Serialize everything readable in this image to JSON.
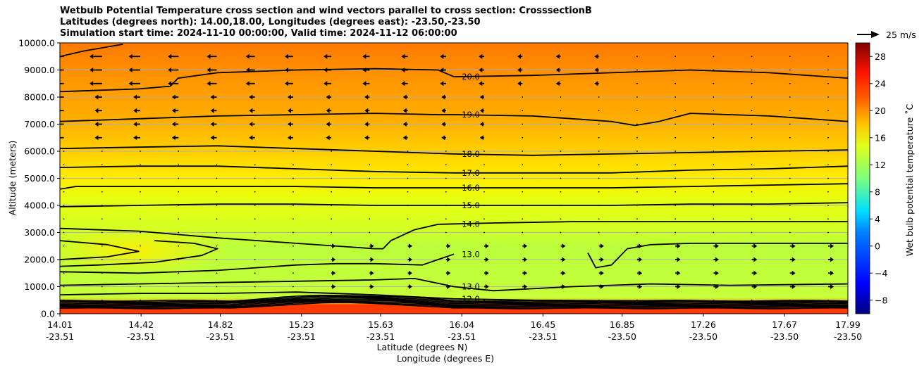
{
  "chart_data": {
    "type": "heatmap",
    "title_lines": [
      "Wetbulb Potential Temperature cross section and wind vectors parallel to cross section: CrosssectionB",
      "Latitudes (degrees north): 14.00,18.00, Longitudes (degrees east): -23.50,-23.50",
      "Simulation start time: 2024-11-10 00:00:00, Valid time: 2024-11-12 06:00:00"
    ],
    "ylabel": "Altitude (meters)",
    "xlabel_lat": "Latitude (degrees N)",
    "xlabel_lon": "Longitude (degrees E)",
    "colorbar_label": "Wet bulb potential temperature ˚C",
    "ylim": [
      0,
      10000
    ],
    "y_ticks": [
      "0.0",
      "1000.0",
      "2000.0",
      "3000.0",
      "4000.0",
      "5000.0",
      "6000.0",
      "7000.0",
      "8000.0",
      "9000.0",
      "10000.0"
    ],
    "x_ticks": [
      {
        "lat": "14.01",
        "lon": "-23.51"
      },
      {
        "lat": "14.42",
        "lon": "-23.51"
      },
      {
        "lat": "14.82",
        "lon": "-23.51"
      },
      {
        "lat": "15.23",
        "lon": "-23.51"
      },
      {
        "lat": "15.63",
        "lon": "-23.51"
      },
      {
        "lat": "16.04",
        "lon": "-23.51"
      },
      {
        "lat": "16.45",
        "lon": "-23.51"
      },
      {
        "lat": "16.85",
        "lon": "-23.50"
      },
      {
        "lat": "17.26",
        "lon": "-23.50"
      },
      {
        "lat": "17.67",
        "lon": "-23.50"
      },
      {
        "lat": "17.99",
        "lon": "-23.50"
      }
    ],
    "colorbar_range": [
      -10,
      30
    ],
    "colorbar_ticks": [
      "−8",
      "−4",
      "0",
      "4",
      "8",
      "12",
      "16",
      "20",
      "24",
      "28"
    ],
    "wind_key": "25 m/s",
    "grid": true,
    "contours": [
      {
        "level": "20.0",
        "points": [
          [
            0,
            9500
          ],
          [
            0.03,
            9700
          ],
          [
            0.08,
            9950
          ]
        ]
      },
      {
        "level": "20.0",
        "points": [
          [
            0,
            8200
          ],
          [
            0.1,
            8300
          ],
          [
            0.14,
            8400
          ],
          [
            0.15,
            8700
          ],
          [
            0.2,
            8900
          ],
          [
            0.3,
            9000
          ],
          [
            0.4,
            9050
          ],
          [
            0.48,
            9000
          ],
          [
            0.5,
            8750
          ],
          [
            0.6,
            8800
          ],
          [
            0.7,
            8900
          ],
          [
            0.8,
            9000
          ],
          [
            0.9,
            8900
          ],
          [
            1,
            8700
          ]
        ]
      },
      {
        "level": "19.0",
        "points": [
          [
            0,
            7100
          ],
          [
            0.1,
            7200
          ],
          [
            0.2,
            7300
          ],
          [
            0.3,
            7350
          ],
          [
            0.4,
            7400
          ],
          [
            0.48,
            7350
          ],
          [
            0.5,
            7350
          ],
          [
            0.6,
            7300
          ],
          [
            0.7,
            7100
          ],
          [
            0.73,
            6950
          ],
          [
            0.76,
            7100
          ],
          [
            0.8,
            7400
          ],
          [
            0.9,
            7300
          ],
          [
            1,
            7100
          ]
        ]
      },
      {
        "level": "18.0",
        "points": [
          [
            0,
            6100
          ],
          [
            0.1,
            6150
          ],
          [
            0.2,
            6200
          ],
          [
            0.3,
            6100
          ],
          [
            0.4,
            6000
          ],
          [
            0.5,
            5900
          ],
          [
            0.6,
            5850
          ],
          [
            0.7,
            5900
          ],
          [
            0.8,
            5950
          ],
          [
            0.9,
            6000
          ],
          [
            1,
            6050
          ]
        ]
      },
      {
        "level": "17.0",
        "points": [
          [
            0,
            5400
          ],
          [
            0.1,
            5450
          ],
          [
            0.2,
            5450
          ],
          [
            0.3,
            5350
          ],
          [
            0.4,
            5250
          ],
          [
            0.5,
            5200
          ],
          [
            0.6,
            5200
          ],
          [
            0.7,
            5200
          ],
          [
            0.8,
            5300
          ],
          [
            0.9,
            5350
          ],
          [
            1,
            5450
          ]
        ]
      },
      {
        "level": "16.0",
        "points": [
          [
            0,
            4600
          ],
          [
            0.02,
            4700
          ],
          [
            0.1,
            4700
          ],
          [
            0.2,
            4700
          ],
          [
            0.3,
            4700
          ],
          [
            0.4,
            4650
          ],
          [
            0.5,
            4650
          ],
          [
            0.6,
            4650
          ],
          [
            0.7,
            4650
          ],
          [
            0.8,
            4700
          ],
          [
            0.9,
            4750
          ],
          [
            1,
            4800
          ]
        ]
      },
      {
        "level": "15.0",
        "points": [
          [
            0,
            3950
          ],
          [
            0.1,
            4000
          ],
          [
            0.2,
            4050
          ],
          [
            0.3,
            4050
          ],
          [
            0.4,
            4000
          ],
          [
            0.5,
            4000
          ],
          [
            0.6,
            4000
          ],
          [
            0.7,
            4000
          ],
          [
            0.8,
            4050
          ],
          [
            0.9,
            4050
          ],
          [
            1,
            4100
          ]
        ]
      },
      {
        "level": "14.0",
        "points": [
          [
            0,
            3150
          ],
          [
            0.1,
            3050
          ],
          [
            0.2,
            2800
          ],
          [
            0.3,
            2600
          ],
          [
            0.4,
            2400
          ],
          [
            0.41,
            2400
          ],
          [
            0.42,
            2700
          ],
          [
            0.45,
            3100
          ],
          [
            0.48,
            3300
          ],
          [
            0.55,
            3350
          ],
          [
            0.65,
            3400
          ],
          [
            0.75,
            3400
          ],
          [
            0.85,
            3400
          ],
          [
            1,
            3400
          ]
        ]
      },
      {
        "level": "16.0",
        "points": [
          [
            0,
            2700
          ],
          [
            0.06,
            2550
          ],
          [
            0.1,
            2300
          ],
          [
            0.06,
            2100
          ],
          [
            0,
            2000
          ]
        ]
      },
      {
        "level": "15.0",
        "points": [
          [
            0,
            1750
          ],
          [
            0.05,
            1800
          ],
          [
            0.12,
            1900
          ],
          [
            0.18,
            2150
          ],
          [
            0.2,
            2400
          ],
          [
            0.17,
            2600
          ],
          [
            0.12,
            2700
          ]
        ]
      },
      {
        "level": "13.0",
        "points": [
          [
            0,
            1550
          ],
          [
            0.1,
            1500
          ],
          [
            0.2,
            1600
          ],
          [
            0.3,
            1800
          ],
          [
            0.35,
            1850
          ],
          [
            0.4,
            1850
          ],
          [
            0.46,
            1800
          ],
          [
            0.48,
            2000
          ],
          [
            0.5,
            2200
          ]
        ]
      },
      {
        "level": "14.0",
        "points": [
          [
            0.67,
            2250
          ],
          [
            0.68,
            1700
          ],
          [
            0.7,
            1800
          ],
          [
            0.72,
            2400
          ],
          [
            0.75,
            2550
          ],
          [
            0.8,
            2600
          ],
          [
            0.9,
            2600
          ],
          [
            1,
            2600
          ]
        ]
      },
      {
        "level": "13.0",
        "points": [
          [
            0,
            1050
          ],
          [
            0.1,
            1100
          ],
          [
            0.2,
            1150
          ],
          [
            0.3,
            1200
          ],
          [
            0.4,
            1250
          ],
          [
            0.45,
            1300
          ],
          [
            0.5,
            1000
          ],
          [
            0.55,
            850
          ],
          [
            0.65,
            1000
          ],
          [
            0.75,
            1100
          ],
          [
            0.85,
            1050
          ],
          [
            1,
            1100
          ]
        ]
      },
      {
        "level": "12.0",
        "points": [
          [
            0,
            700
          ],
          [
            0.1,
            750
          ],
          [
            0.2,
            750
          ],
          [
            0.3,
            800
          ],
          [
            0.4,
            700
          ],
          [
            0.5,
            550
          ],
          [
            0.6,
            500
          ],
          [
            0.7,
            480
          ],
          [
            0.8,
            470
          ],
          [
            0.9,
            450
          ],
          [
            1,
            450
          ]
        ]
      }
    ]
  }
}
